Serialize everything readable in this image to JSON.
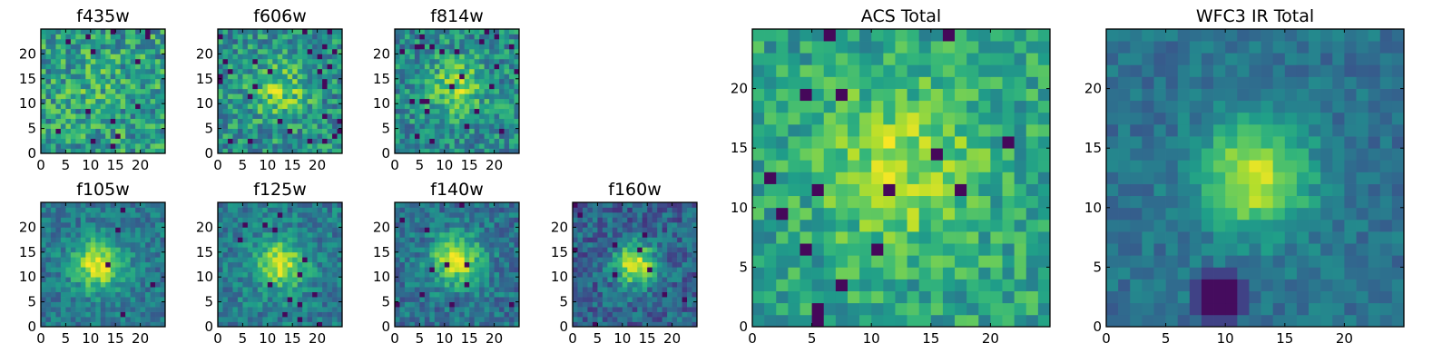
{
  "chart_data": [
    {
      "type": "heatmap",
      "title": "f435w",
      "xlim": [
        0,
        25
      ],
      "ylim": [
        0,
        25
      ],
      "xticks": [
        0,
        5,
        10,
        15,
        20
      ],
      "yticks": [
        0,
        5,
        10,
        15,
        20
      ],
      "grid": false,
      "colormap": "viridis",
      "seed": 11,
      "peak": [
        11,
        13
      ],
      "sigma": 4.5,
      "amp": 0.08,
      "noise": 0.5,
      "base": 0.55,
      "outliers": 0.03
    },
    {
      "type": "heatmap",
      "title": "f606w",
      "xlim": [
        0,
        25
      ],
      "ylim": [
        0,
        25
      ],
      "xticks": [
        0,
        5,
        10,
        15,
        20
      ],
      "yticks": [
        0,
        5,
        10,
        15,
        20
      ],
      "grid": false,
      "colormap": "viridis",
      "seed": 22,
      "peak": [
        12,
        12
      ],
      "sigma": 4.0,
      "amp": 0.28,
      "noise": 0.45,
      "base": 0.5,
      "outliers": 0.04
    },
    {
      "type": "heatmap",
      "title": "f814w",
      "xlim": [
        0,
        25
      ],
      "ylim": [
        0,
        25
      ],
      "xticks": [
        0,
        5,
        10,
        15,
        20
      ],
      "yticks": [
        0,
        5,
        10,
        15,
        20
      ],
      "grid": false,
      "colormap": "viridis",
      "seed": 33,
      "peak": [
        12,
        13
      ],
      "sigma": 4.0,
      "amp": 0.32,
      "noise": 0.42,
      "base": 0.48,
      "outliers": 0.04
    },
    {
      "type": "heatmap",
      "title": "f105w",
      "xlim": [
        0,
        25
      ],
      "ylim": [
        0,
        25
      ],
      "xticks": [
        0,
        5,
        10,
        15,
        20
      ],
      "yticks": [
        0,
        5,
        10,
        15,
        20
      ],
      "grid": false,
      "colormap": "viridis",
      "seed": 44,
      "peak": [
        11,
        12
      ],
      "sigma": 3.5,
      "amp": 0.55,
      "noise": 0.3,
      "base": 0.4,
      "outliers": 0.01
    },
    {
      "type": "heatmap",
      "title": "f125w",
      "xlim": [
        0,
        25
      ],
      "ylim": [
        0,
        25
      ],
      "xticks": [
        0,
        5,
        10,
        15,
        20
      ],
      "yticks": [
        0,
        5,
        10,
        15,
        20
      ],
      "grid": false,
      "colormap": "viridis",
      "seed": 55,
      "peak": [
        12,
        12
      ],
      "sigma": 3.5,
      "amp": 0.5,
      "noise": 0.32,
      "base": 0.42,
      "outliers": 0.02
    },
    {
      "type": "heatmap",
      "title": "f140w",
      "xlim": [
        0,
        25
      ],
      "ylim": [
        0,
        25
      ],
      "xticks": [
        0,
        5,
        10,
        15,
        20
      ],
      "yticks": [
        0,
        5,
        10,
        15,
        20
      ],
      "grid": false,
      "colormap": "viridis",
      "seed": 66,
      "peak": [
        12,
        13
      ],
      "sigma": 3.5,
      "amp": 0.55,
      "noise": 0.32,
      "base": 0.38,
      "outliers": 0.02
    },
    {
      "type": "heatmap",
      "title": "f160w",
      "xlim": [
        0,
        25
      ],
      "ylim": [
        0,
        25
      ],
      "xticks": [
        0,
        5,
        10,
        15,
        20
      ],
      "yticks": [
        0,
        5,
        10,
        15,
        20
      ],
      "grid": false,
      "colormap": "viridis",
      "seed": 77,
      "peak": [
        12,
        12
      ],
      "sigma": 3.0,
      "amp": 0.6,
      "noise": 0.35,
      "base": 0.32,
      "outliers": 0.02
    },
    {
      "type": "heatmap",
      "title": "ACS Total",
      "xlim": [
        0,
        25
      ],
      "ylim": [
        0,
        25
      ],
      "xticks": [
        0,
        5,
        10,
        15,
        20
      ],
      "yticks": [
        0,
        5,
        10,
        15,
        20
      ],
      "grid": false,
      "colormap": "viridis",
      "seed": 88,
      "peak": [
        12,
        13
      ],
      "sigma": 4.5,
      "amp": 0.3,
      "noise": 0.35,
      "base": 0.58,
      "outliers": 0.03
    },
    {
      "type": "heatmap",
      "title": "WFC3 IR Total",
      "xlim": [
        0,
        25
      ],
      "ylim": [
        0,
        25
      ],
      "xticks": [
        0,
        5,
        10,
        15,
        20
      ],
      "yticks": [
        0,
        5,
        10,
        15,
        20
      ],
      "grid": false,
      "colormap": "viridis",
      "seed": 99,
      "peak": [
        12,
        12
      ],
      "sigma": 3.2,
      "amp": 0.55,
      "noise": 0.2,
      "base": 0.38,
      "outliers": 0.0,
      "dark_patch": [
        9,
        2
      ]
    }
  ],
  "colors": {
    "viridis": [
      "#440154",
      "#482878",
      "#3e4989",
      "#31688e",
      "#26828e",
      "#1f9e89",
      "#35b779",
      "#6ece58",
      "#b5de2b",
      "#fde725"
    ],
    "axes": "#000000",
    "background": "#ffffff"
  }
}
